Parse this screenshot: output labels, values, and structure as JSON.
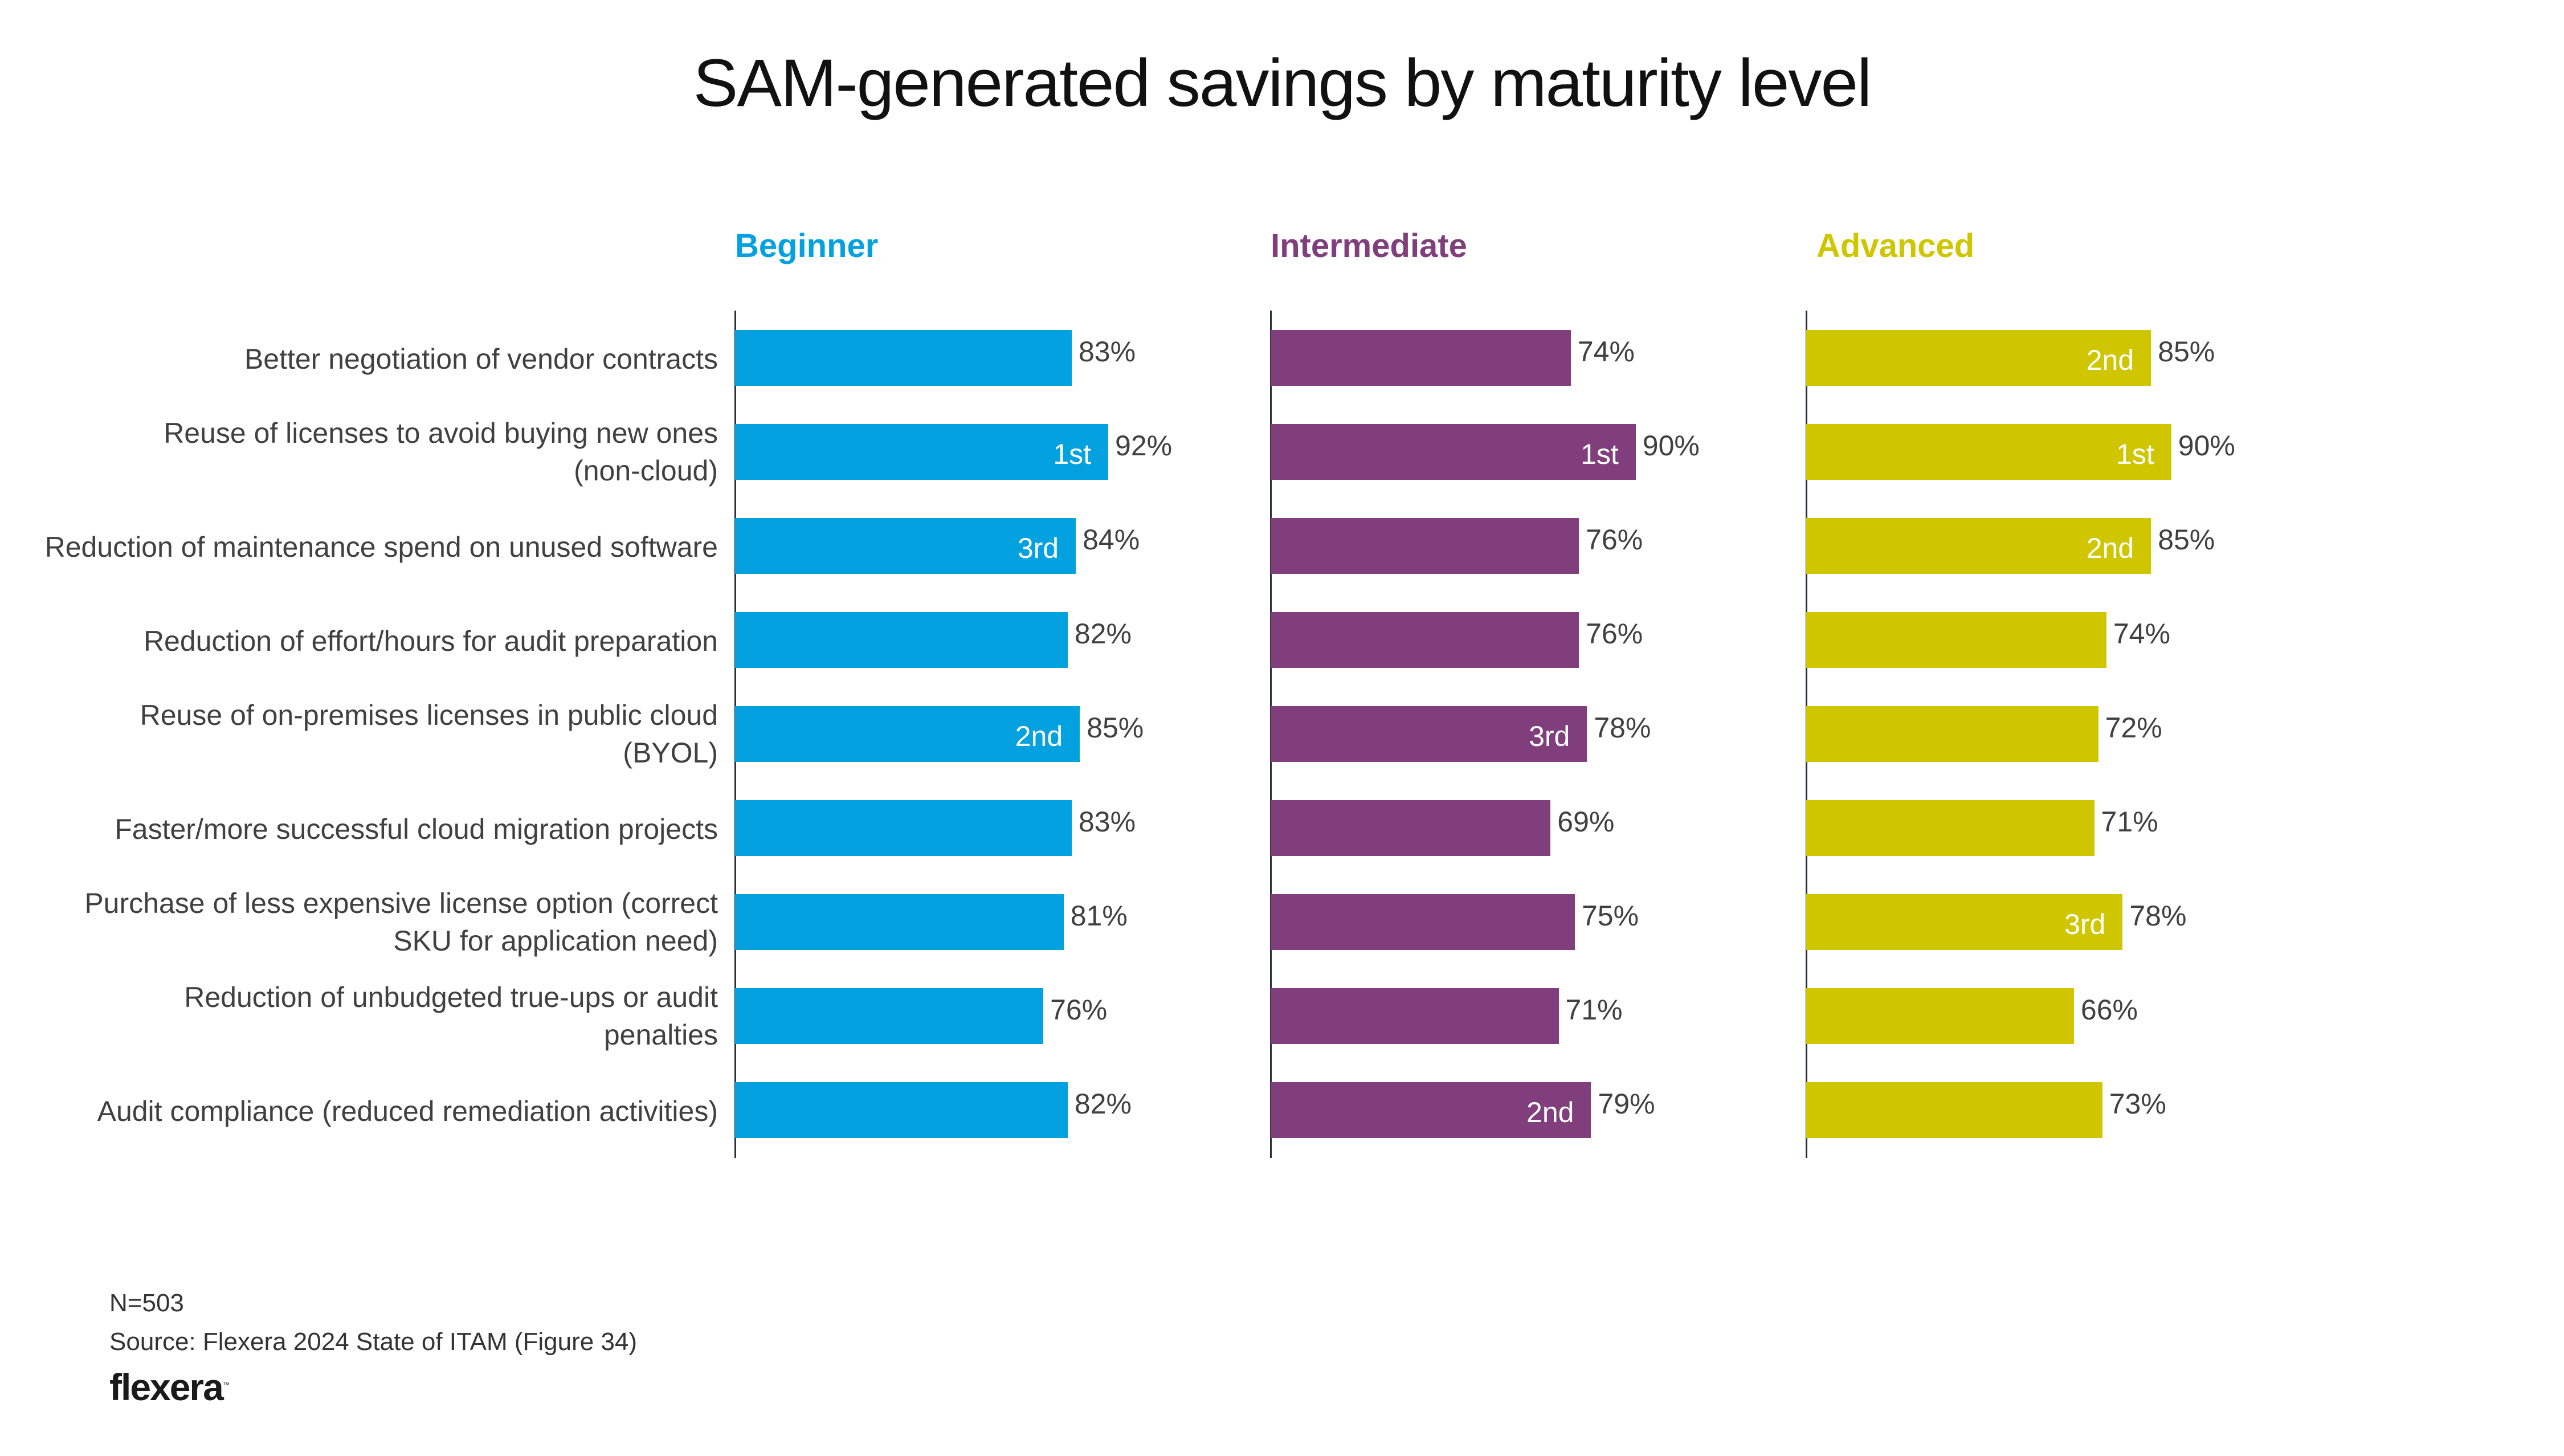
{
  "chart_data": {
    "type": "bar",
    "orientation": "horizontal",
    "title": "SAM-generated savings by maturity level",
    "xlabel": "",
    "ylabel": "",
    "xlim": [
      0,
      100
    ],
    "grid": false,
    "value_suffix": "%",
    "categories": [
      "Better negotiation of vendor contracts",
      "Reuse of licenses to avoid buying new ones\n(non-cloud)",
      "Reduction of maintenance spend on unused software",
      "Reduction of effort/hours for audit preparation",
      "Reuse of on-premises licenses in public cloud\n(BYOL)",
      "Faster/more successful cloud migration projects",
      "Purchase of less expensive license option (correct\nSKU for application need)",
      "Reduction of unbudgeted true-ups or audit\npenalties",
      "Audit compliance (reduced remediation activities)"
    ],
    "series": [
      {
        "name": "Beginner",
        "color": "#03A1DF",
        "values": [
          83,
          92,
          84,
          82,
          85,
          83,
          81,
          76,
          82
        ],
        "ranks": [
          "",
          "1st",
          "3rd",
          "",
          "2nd",
          "",
          "",
          "",
          ""
        ]
      },
      {
        "name": "Intermediate",
        "color": "#803E7D",
        "values": [
          74,
          90,
          76,
          76,
          78,
          69,
          75,
          71,
          79
        ],
        "ranks": [
          "",
          "1st",
          "",
          "",
          "3rd",
          "",
          "",
          "",
          "2nd"
        ]
      },
      {
        "name": "Advanced",
        "color": "#CFC600",
        "values": [
          85,
          90,
          85,
          74,
          72,
          71,
          78,
          66,
          73
        ],
        "ranks": [
          "2nd",
          "1st",
          "2nd",
          "",
          "",
          "",
          "3rd",
          "",
          ""
        ]
      }
    ]
  },
  "footer": {
    "sample_size": "N=503",
    "source": "Source: Flexera 2024 State of ITAM (Figure 34)",
    "logo_text": "flexera",
    "logo_mark": "™"
  }
}
